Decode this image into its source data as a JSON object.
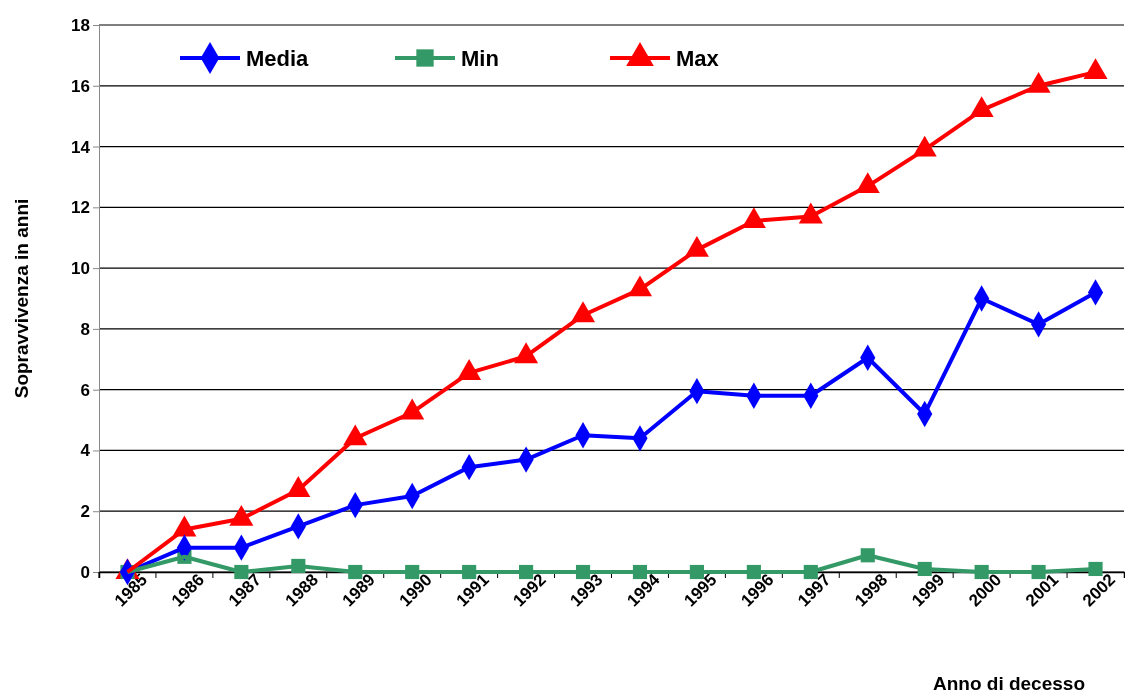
{
  "chart_data": {
    "type": "line",
    "xlabel": "Anno di decesso",
    "ylabel": "Sopravvivenza in anni",
    "categories": [
      "1985",
      "1986",
      "1987",
      "1988",
      "1989",
      "1990",
      "1991",
      "1992",
      "1993",
      "1994",
      "1995",
      "1996",
      "1997",
      "1998",
      "1999",
      "2000",
      "2001",
      "2002"
    ],
    "series": [
      {
        "name": "Media",
        "color": "#0000ff",
        "marker": "diamond",
        "values": [
          0,
          0.8,
          0.8,
          1.5,
          2.2,
          2.5,
          3.45,
          3.7,
          4.5,
          4.4,
          5.95,
          5.8,
          5.8,
          7.05,
          5.2,
          9.0,
          8.15,
          9.2
        ]
      },
      {
        "name": "Min",
        "color": "#339966",
        "marker": "square",
        "values": [
          0,
          0.5,
          0,
          0.2,
          0,
          0,
          0,
          0,
          0,
          0,
          0,
          0,
          0,
          0.55,
          0.1,
          0,
          0,
          0.1
        ]
      },
      {
        "name": "Max",
        "color": "#ff0000",
        "marker": "triangle",
        "values": [
          0,
          1.4,
          1.75,
          2.7,
          4.4,
          5.25,
          6.55,
          7.1,
          8.45,
          9.3,
          10.6,
          11.55,
          11.7,
          12.7,
          13.9,
          15.2,
          16.0,
          16.45
        ]
      }
    ],
    "ylim": [
      0,
      18
    ],
    "yticks": [
      0,
      2,
      4,
      6,
      8,
      10,
      12,
      14,
      16,
      18
    ],
    "grid": "y",
    "legend": "top"
  }
}
